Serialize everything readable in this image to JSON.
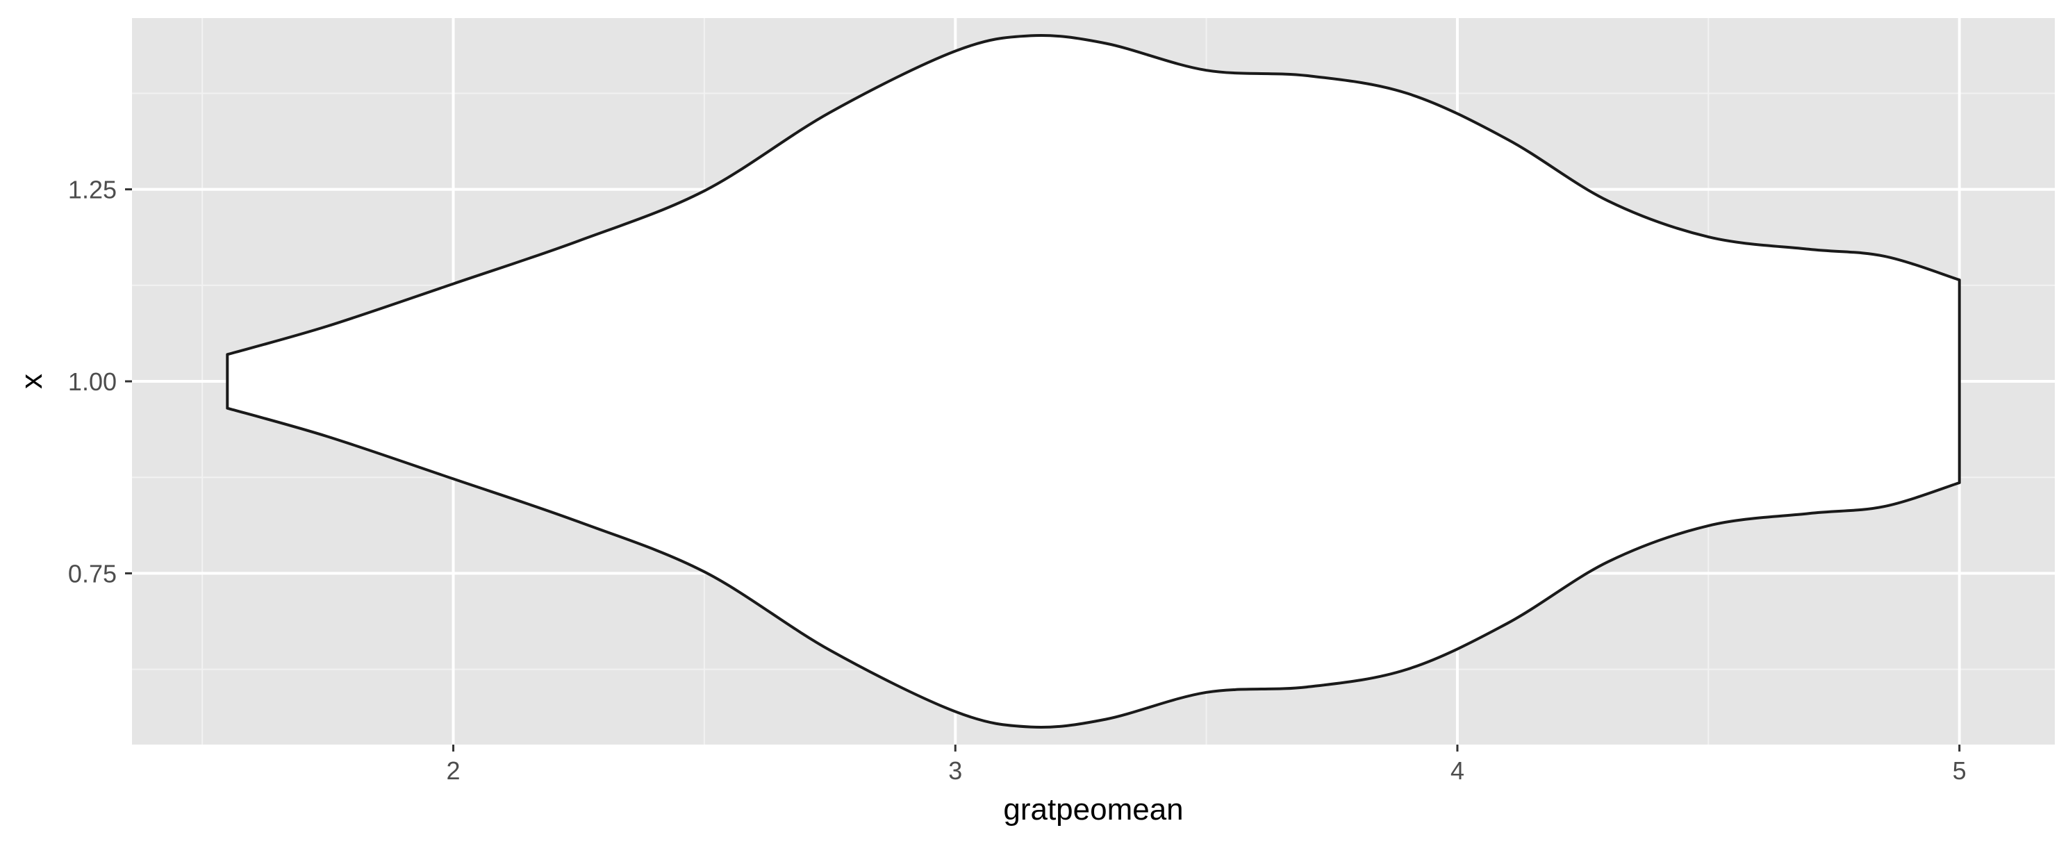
{
  "chart_data": {
    "type": "violin",
    "orientation": "horizontal",
    "title": "",
    "xlabel": "gratpeomean",
    "ylabel": "x",
    "xlim": [
      1.36,
      5.19
    ],
    "ylim": [
      0.527,
      1.473
    ],
    "x_ticks": [
      2,
      3,
      4,
      5
    ],
    "x_tick_labels": [
      "2",
      "3",
      "4",
      "5"
    ],
    "y_ticks": [
      0.75,
      1.0,
      1.25
    ],
    "y_tick_labels": [
      "0.75",
      "1.00",
      "1.25"
    ],
    "grid": true,
    "violin": {
      "center": 1.0,
      "x_min": 1.55,
      "x_max": 5.0,
      "fill": "#FFFFFF",
      "stroke": "#1a1a1a",
      "profile": [
        {
          "x": 1.55,
          "half_width": 0.035
        },
        {
          "x": 1.75,
          "half_width": 0.072
        },
        {
          "x": 2.0,
          "half_width": 0.127
        },
        {
          "x": 2.25,
          "half_width": 0.183
        },
        {
          "x": 2.5,
          "half_width": 0.248
        },
        {
          "x": 2.75,
          "half_width": 0.35
        },
        {
          "x": 3.0,
          "half_width": 0.43
        },
        {
          "x": 3.15,
          "half_width": 0.45
        },
        {
          "x": 3.3,
          "half_width": 0.44
        },
        {
          "x": 3.5,
          "half_width": 0.405
        },
        {
          "x": 3.7,
          "half_width": 0.398
        },
        {
          "x": 3.9,
          "half_width": 0.375
        },
        {
          "x": 4.1,
          "half_width": 0.315
        },
        {
          "x": 4.3,
          "half_width": 0.235
        },
        {
          "x": 4.5,
          "half_width": 0.188
        },
        {
          "x": 4.7,
          "half_width": 0.172
        },
        {
          "x": 4.85,
          "half_width": 0.163
        },
        {
          "x": 5.0,
          "half_width": 0.132
        }
      ]
    },
    "colors": {
      "panel_background": "#E5E5E5",
      "grid_major": "#FFFFFF",
      "grid_minor": "#F2F2F2",
      "tick_label": "#4D4D4D",
      "tick_mark": "#333333"
    }
  }
}
